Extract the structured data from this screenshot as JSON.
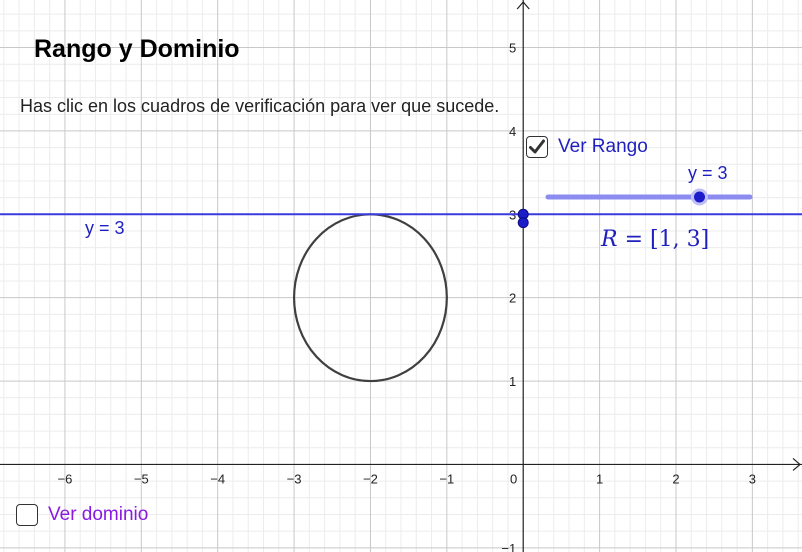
{
  "applet": {
    "title": "Rango y Dominio",
    "instructions": "Has clic en los cuadros de verificación para ver que sucede."
  },
  "controls": {
    "ver_rango": {
      "label": "Ver Rango",
      "checked": true
    },
    "ver_dominio": {
      "label": "Ver dominio",
      "checked": false
    }
  },
  "slider": {
    "label": "y = 3",
    "value": 3,
    "min": 1,
    "max": 3
  },
  "horizontal_line": {
    "label": "y = 3",
    "y": 3
  },
  "range_result": {
    "variable": "R",
    "equals": " = ",
    "interval": "[1, 3]"
  },
  "graph": {
    "x_ticks": [
      "−6",
      "−5",
      "−4",
      "−3",
      "−2",
      "−1",
      "0",
      "1",
      "2",
      "3"
    ],
    "y_ticks": [
      "5",
      "4",
      "3",
      "2",
      "1",
      "−1"
    ],
    "x_range": [
      -6.85,
      3.65
    ],
    "y_range": [
      -1.05,
      5.57
    ],
    "ellipse": {
      "center_x": -2,
      "center_y": 2,
      "radius_x": 1,
      "radius_y": 1
    },
    "y_axis_points": [
      3,
      2.9
    ],
    "colors": {
      "line": "#3a3adf",
      "slider_track": "#8c8cf0",
      "point": "#1c1cc9",
      "ellipse": "#404040",
      "axis": "#222222",
      "major_grid": "#c8c8c8",
      "minor_grid": "#ececec"
    }
  }
}
